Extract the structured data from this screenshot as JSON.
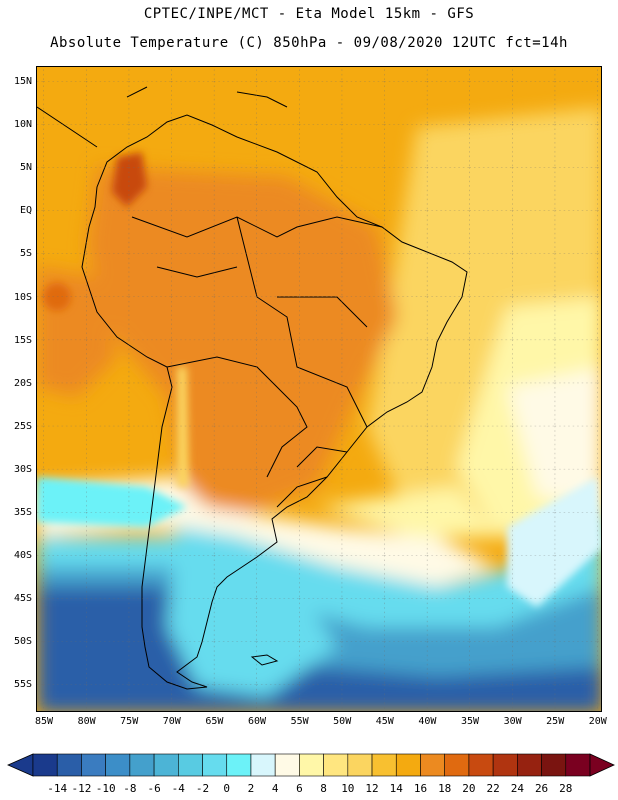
{
  "header": {
    "line1": "CPTEC/INPE/MCT -  Eta Model 15km - GFS",
    "line2": "Absolute Temperature (C) 850hPa - 09/08/2020 12UTC fct=14h"
  },
  "map": {
    "lat_labels": [
      "15N",
      "10N",
      "5N",
      "EQ",
      "5S",
      "10S",
      "15S",
      "20S",
      "25S",
      "30S",
      "35S",
      "40S",
      "45S",
      "50S",
      "55S"
    ],
    "lon_labels": [
      "85W",
      "80W",
      "75W",
      "70W",
      "65W",
      "60W",
      "55W",
      "50W",
      "45W",
      "40W",
      "35W",
      "30W",
      "25W",
      "20W"
    ],
    "extent": {
      "lon_min": -86,
      "lon_max": -19.5,
      "lat_min": -58,
      "lat_max": 17
    }
  },
  "colorbar": {
    "levels": [
      -14,
      -12,
      -10,
      -8,
      -6,
      -4,
      -2,
      0,
      2,
      4,
      6,
      8,
      10,
      12,
      14,
      16,
      18,
      20,
      22,
      24,
      26,
      28
    ],
    "labels": [
      "-14",
      "-12",
      "-10",
      "-8",
      "-6",
      "-4",
      "-2",
      "0",
      "2",
      "4",
      "6",
      "8",
      "10",
      "12",
      "14",
      "16",
      "18",
      "20",
      "22",
      "24",
      "26",
      "28"
    ],
    "colors": [
      "#1a3a8c",
      "#2a5ea8",
      "#3a7cc0",
      "#3c8ec8",
      "#44a0cc",
      "#4cb4d6",
      "#58cbe2",
      "#66dcee",
      "#6cf2f8",
      "#d8f6fc",
      "#fffae6",
      "#fff7a8",
      "#ffe680",
      "#fbd560",
      "#f8c030",
      "#f4aa10",
      "#ec8a20",
      "#e06a10",
      "#c84a10",
      "#b03410",
      "#962210",
      "#7a1410",
      "#7a0020"
    ],
    "under_color": "#1a3a8c",
    "over_color": "#7a0020"
  }
}
